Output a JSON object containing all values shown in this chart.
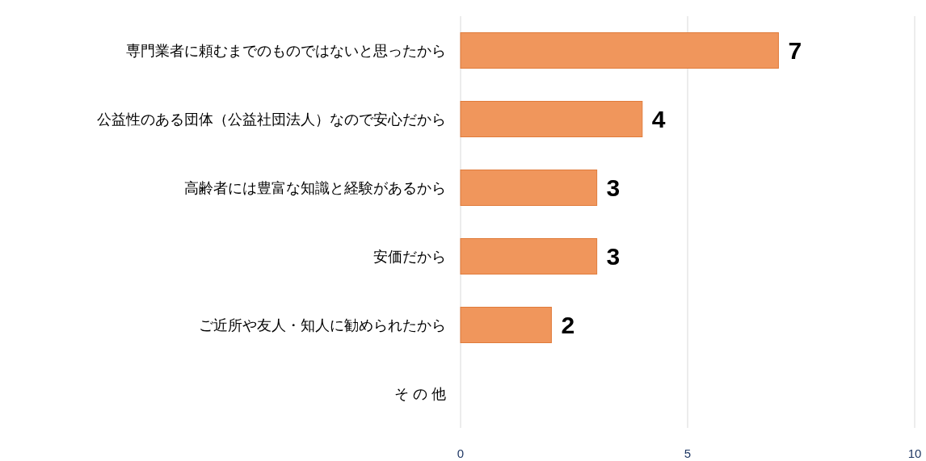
{
  "chart_data": {
    "type": "bar",
    "orientation": "horizontal",
    "categories": [
      "専門業者に頼むまでのものではないと思ったから",
      "公益性のある団体（公益社団法人）なので安心だから",
      "高齢者には豊富な知識と経験があるから",
      "安価だから",
      "ご近所や友人・知人に勧められたから",
      "そ の 他"
    ],
    "values": [
      7,
      4,
      3,
      3,
      2,
      0
    ],
    "value_labels": [
      "7",
      "4",
      "3",
      "3",
      "2",
      null
    ],
    "color": "#f0965c",
    "xlim": [
      0,
      10
    ],
    "xticks": [
      0,
      5,
      10
    ],
    "grid": "x"
  }
}
